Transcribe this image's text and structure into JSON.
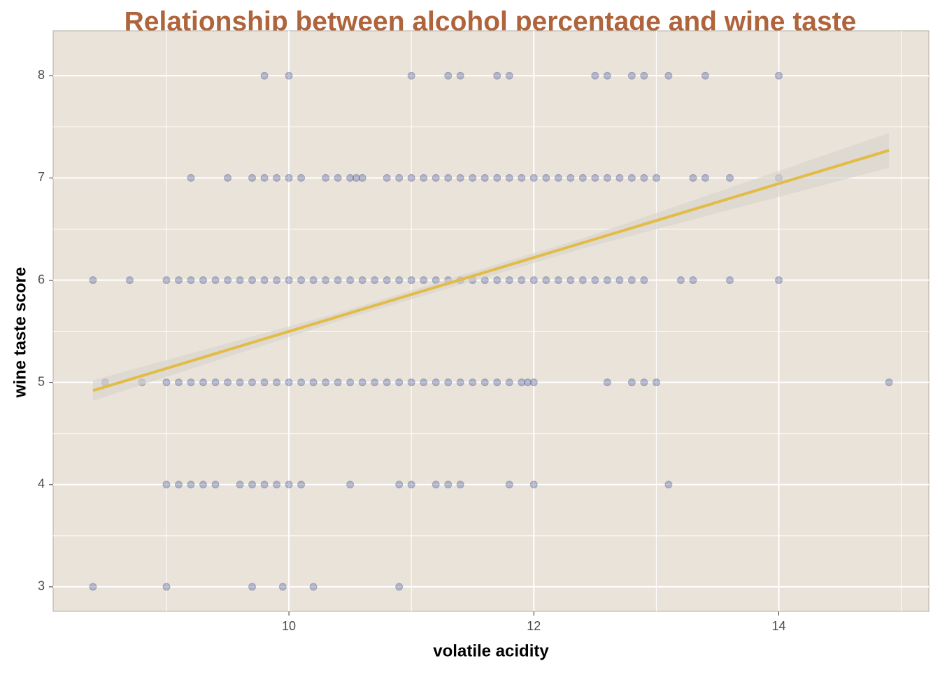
{
  "chart_data": {
    "type": "scatter",
    "title": "Relationship between alcohol percentage and wine taste",
    "x_label": "volatile acidity",
    "y_label": "wine taste score",
    "xlim": [
      8.075,
      15.225
    ],
    "ylim": [
      2.76,
      8.44
    ],
    "xticks": [
      10,
      12,
      14
    ],
    "yticks": [
      3,
      4,
      5,
      6,
      7,
      8
    ],
    "x_minor_grid": [
      9,
      11,
      13,
      15
    ],
    "y_minor_grid": [
      3.5,
      4.5,
      5.5,
      6.5,
      7.5
    ],
    "grid": true,
    "background": "#eae3d9",
    "color": "#2b3f8a",
    "x": [
      9.8,
      10,
      11,
      11.3,
      11.4,
      11.7,
      11.8,
      12.5,
      12.6,
      12.8,
      12.9,
      13.1,
      13.4,
      14,
      9.2,
      9.5,
      9.7,
      9.8,
      9.9,
      10,
      10.1,
      10.3,
      10.4,
      10.5,
      10.55,
      10.6,
      10.8,
      10.9,
      11,
      11.1,
      11.2,
      11.3,
      11.4,
      11.5,
      11.6,
      11.7,
      11.8,
      11.9,
      12,
      12.1,
      12.2,
      12.3,
      12.4,
      12.5,
      12.6,
      12.7,
      12.8,
      12.9,
      13,
      13.3,
      13.4,
      13.6,
      14,
      8.4,
      8.7,
      9.0,
      9.1,
      9.2,
      9.3,
      9.4,
      9.5,
      9.6,
      9.7,
      9.8,
      9.9,
      10.0,
      10.1,
      10.2,
      10.3,
      10.4,
      10.5,
      10.6,
      10.7,
      10.8,
      10.9,
      11.0,
      11.1,
      11.2,
      11.3,
      11.4,
      11.5,
      11.6,
      11.7,
      11.8,
      11.9,
      12.0,
      12.1,
      12.2,
      12.3,
      12.4,
      12.5,
      12.6,
      12.7,
      12.8,
      12.9,
      13.2,
      13.3,
      13.6,
      14.0,
      8.5,
      8.8,
      9.0,
      9.1,
      9.2,
      9.3,
      9.4,
      9.5,
      9.6,
      9.7,
      9.8,
      9.9,
      10.0,
      10.1,
      10.2,
      10.3,
      10.4,
      10.5,
      10.6,
      10.7,
      10.8,
      10.9,
      11.0,
      11.1,
      11.2,
      11.3,
      11.4,
      11.5,
      11.6,
      11.7,
      11.8,
      11.9,
      11.95,
      12.0,
      12.6,
      12.8,
      12.9,
      13.0,
      14.9,
      9.0,
      9.1,
      9.2,
      9.3,
      9.4,
      9.6,
      9.7,
      9.8,
      9.9,
      10.0,
      10.1,
      10.5,
      10.9,
      11.0,
      11.2,
      11.3,
      11.4,
      11.8,
      12.0,
      13.1,
      8.4,
      9.0,
      9.7,
      9.95,
      10.2,
      10.9
    ],
    "y": [
      8,
      8,
      8,
      8,
      8,
      8,
      8,
      8,
      8,
      8,
      8,
      8,
      8,
      8,
      7,
      7,
      7,
      7,
      7,
      7,
      7,
      7,
      7,
      7,
      7,
      7,
      7,
      7,
      7,
      7,
      7,
      7,
      7,
      7,
      7,
      7,
      7,
      7,
      7,
      7,
      7,
      7,
      7,
      7,
      7,
      7,
      7,
      7,
      7,
      7,
      7,
      7,
      7,
      6,
      6,
      6,
      6,
      6,
      6,
      6,
      6,
      6,
      6,
      6,
      6,
      6,
      6,
      6,
      6,
      6,
      6,
      6,
      6,
      6,
      6,
      6,
      6,
      6,
      6,
      6,
      6,
      6,
      6,
      6,
      6,
      6,
      6,
      6,
      6,
      6,
      6,
      6,
      6,
      6,
      6,
      6,
      6,
      6,
      6,
      5,
      5,
      5,
      5,
      5,
      5,
      5,
      5,
      5,
      5,
      5,
      5,
      5,
      5,
      5,
      5,
      5,
      5,
      5,
      5,
      5,
      5,
      5,
      5,
      5,
      5,
      5,
      5,
      5,
      5,
      5,
      5,
      5,
      5,
      5,
      5,
      5,
      5,
      5,
      4,
      4,
      4,
      4,
      4,
      4,
      4,
      4,
      4,
      4,
      4,
      4,
      4,
      4,
      4,
      4,
      4,
      4,
      4,
      4,
      3,
      3,
      3,
      3,
      3,
      3
    ],
    "trend": {
      "color": "#e3bb47",
      "x": [
        8.4,
        14.9
      ],
      "y": [
        4.92,
        7.27
      ]
    },
    "ribbon": {
      "color": "#d6d2cc",
      "x": [
        8.4,
        10.4,
        12.4,
        14.9
      ],
      "lower": [
        4.82,
        5.6,
        6.31,
        7.1
      ],
      "upper": [
        5.02,
        5.68,
        6.41,
        7.44
      ]
    }
  }
}
